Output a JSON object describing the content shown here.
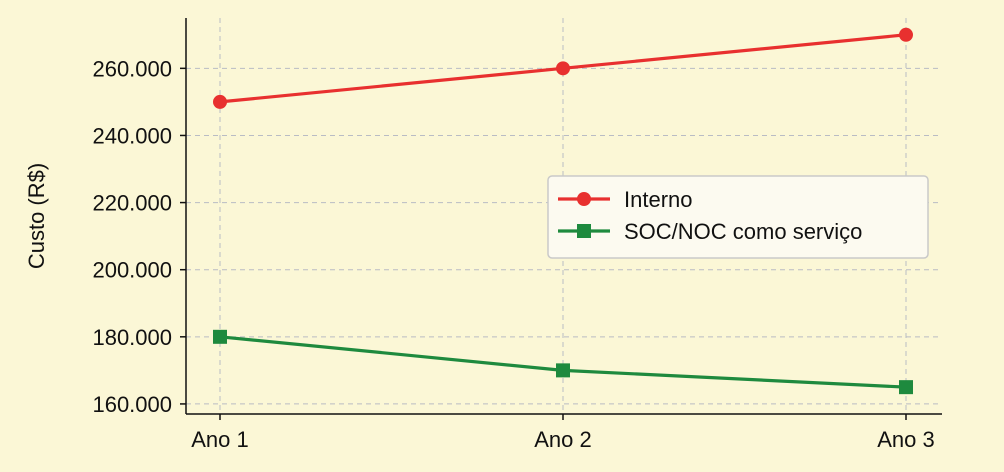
{
  "chart_data": {
    "type": "line",
    "title": "",
    "xlabel": "",
    "ylabel": "Custo (R$)",
    "categories": [
      "Ano 1",
      "Ano 2",
      "Ano 3"
    ],
    "ylim": [
      157000,
      275000
    ],
    "yticks": [
      160000,
      180000,
      200000,
      220000,
      240000,
      260000
    ],
    "ytick_labels": [
      "160.000",
      "180.000",
      "200.000",
      "220.000",
      "240.000",
      "260.000"
    ],
    "grid": true,
    "legend_position": "center-right",
    "series": [
      {
        "name": "Interno",
        "values": [
          250000,
          260000,
          270000
        ],
        "color": "#e8302f",
        "marker": "circle"
      },
      {
        "name": "SOC/NOC como serviço",
        "values": [
          180000,
          170000,
          165000
        ],
        "color": "#1e8a3e",
        "marker": "square"
      }
    ]
  }
}
